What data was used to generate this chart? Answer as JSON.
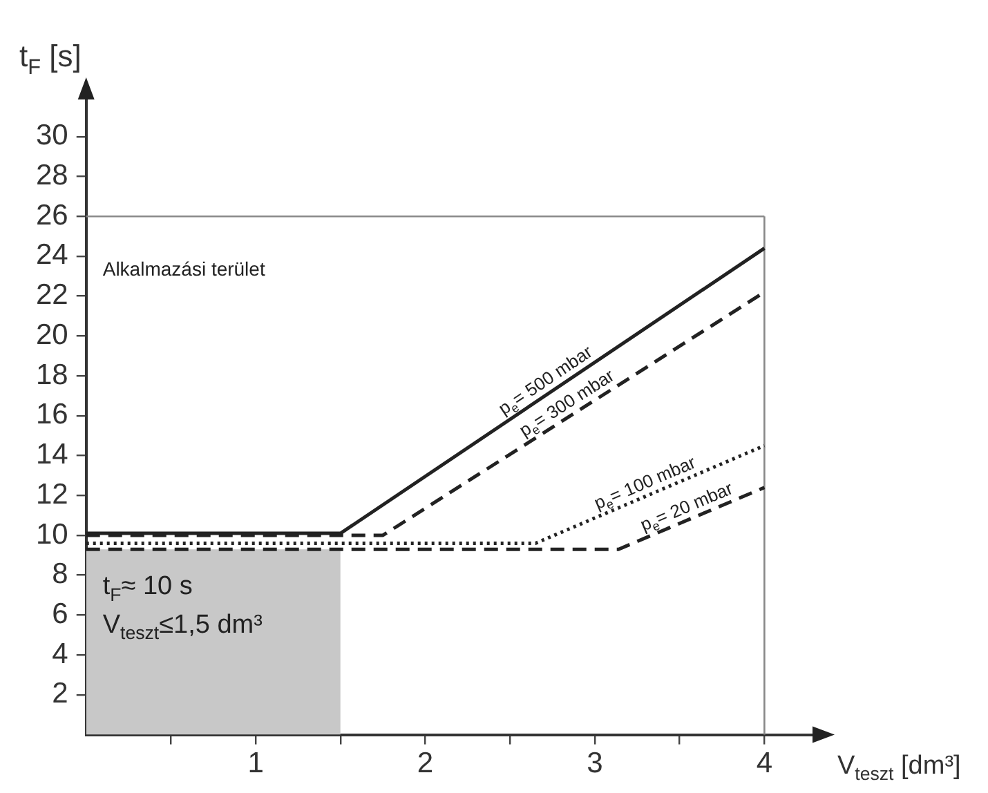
{
  "chart_data": {
    "type": "line",
    "xlabel": "V$_{teszt}$ [dm³]",
    "ylabel": "t$_{F}$ [s]",
    "xlim": [
      0,
      4.3
    ],
    "xticks": [
      {
        "value": 0.5,
        "label": null
      },
      1,
      {
        "value": 1.5,
        "label": null
      },
      2,
      {
        "value": 2.5,
        "label": null
      },
      3,
      {
        "value": 3.5,
        "label": null
      },
      4
    ],
    "ylim": [
      0,
      32
    ],
    "yticks": [
      2,
      4,
      6,
      8,
      10,
      12,
      14,
      16,
      18,
      20,
      22,
      24,
      26,
      28,
      30
    ],
    "grid": false,
    "legend": false,
    "marker": "none",
    "series": [
      {
        "type": "area",
        "x": [
          0,
          1.5
        ],
        "values": [
          9.3,
          9.3
        ],
        "color": "#c8c8c8"
      },
      {
        "name": "p$_{e}$= 500 mbar",
        "x": [
          0,
          1.5,
          4
        ],
        "values": [
          10.1,
          10.1,
          24.4
        ],
        "color": "#222222",
        "line_style": "solid"
      },
      {
        "name": "p$_{e}$= 300 mbar",
        "x": [
          0,
          1.75,
          4
        ],
        "values": [
          10.0,
          10.0,
          22.2
        ],
        "color": "#222222",
        "line_style": "dashed"
      },
      {
        "name": "p$_{e}$= 100 mbar",
        "x": [
          0,
          2.65,
          4
        ],
        "values": [
          9.6,
          9.6,
          14.5
        ],
        "color": "#222222",
        "line_style": "dotted"
      },
      {
        "name": "p$_{e}$= 20 mbar",
        "x": [
          0,
          3.14,
          4
        ],
        "values": [
          9.3,
          9.3,
          12.4
        ],
        "color": "#222222",
        "line_style": "dashed"
      }
    ],
    "ref_lines": [
      {
        "axis": "y",
        "value": 26,
        "color": "#888888"
      },
      {
        "axis": "x",
        "value": 4,
        "color": "#888888"
      }
    ],
    "annotations": [
      "Alkalmazási terület",
      "t$_{F}$≈ 10 s",
      "V$_{teszt}$≤1,5 dm³"
    ]
  }
}
